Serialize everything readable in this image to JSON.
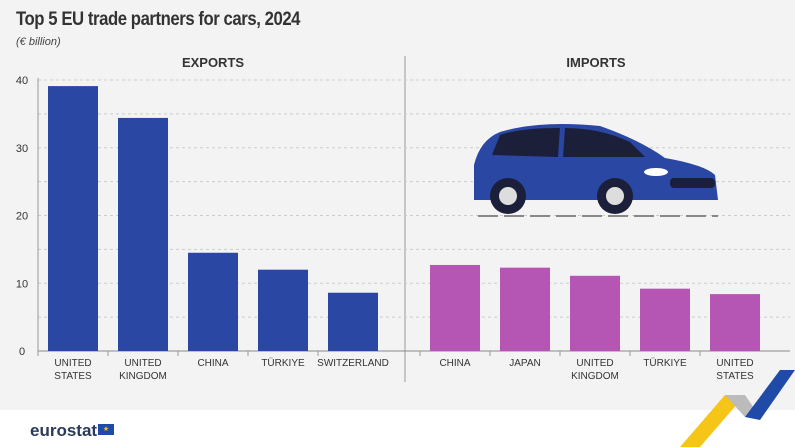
{
  "chart_data": [
    {
      "type": "bar",
      "title": "Top 5 EU trade partners for cars, 2024",
      "subtitle": "(€ billion)",
      "panel": "EXPORTS",
      "categories": [
        "UNITED STATES",
        "UNITED KINGDOM",
        "CHINA",
        "TÜRKIYE",
        "SWITZERLAND"
      ],
      "values": [
        39.1,
        34.4,
        14.5,
        12.0,
        8.6
      ],
      "color": "#2a47a4",
      "ylim": [
        0,
        40
      ],
      "yticks": [
        0,
        10,
        20,
        30,
        40
      ],
      "grid": true
    },
    {
      "type": "bar",
      "panel": "IMPORTS",
      "categories": [
        "CHINA",
        "JAPAN",
        "UNITED KINGDOM",
        "TÜRKIYE",
        "UNITED STATES"
      ],
      "values": [
        12.7,
        12.3,
        11.1,
        9.2,
        8.4
      ],
      "color": "#b556b5",
      "ylim": [
        0,
        40
      ],
      "grid": true
    }
  ],
  "footer": {
    "logo": "eurostat"
  },
  "icons": [
    "car-illustration",
    "eu-flag-icon",
    "eurostat-ribbon-logo"
  ]
}
